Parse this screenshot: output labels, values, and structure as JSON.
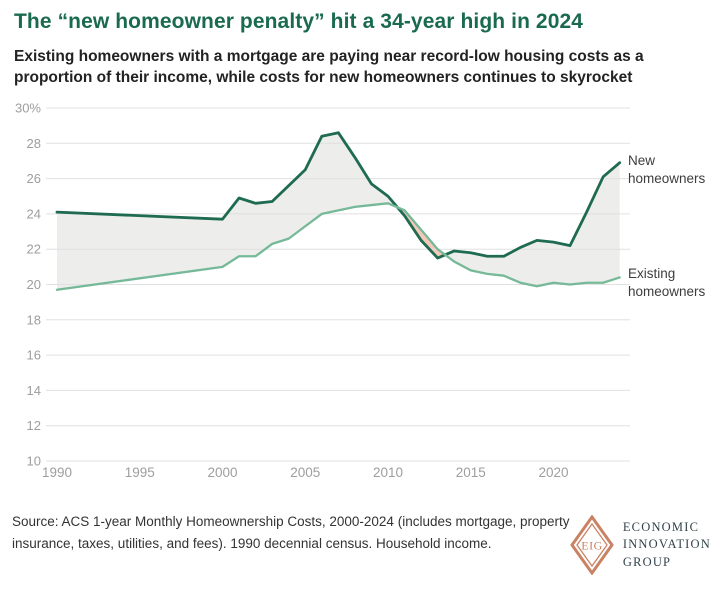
{
  "header": {
    "title": "The “new homeowner penalty” hit a 34-year high in 2024",
    "subtitle": "Existing homeowners with a mortgage are paying near record-low housing costs as a proportion of their income, while costs for new homeowners continues to skyrocket"
  },
  "chart_data": {
    "type": "line",
    "x": [
      1990,
      2000,
      2001,
      2002,
      2003,
      2004,
      2005,
      2006,
      2007,
      2008,
      2009,
      2010,
      2011,
      2012,
      2013,
      2014,
      2015,
      2016,
      2017,
      2018,
      2019,
      2020,
      2021,
      2022,
      2023,
      2024
    ],
    "series": [
      {
        "name": "New homeowners",
        "color": "#1e6b52",
        "stroke_width": 2.8,
        "values": [
          24.1,
          23.7,
          24.9,
          24.6,
          24.7,
          25.6,
          26.5,
          28.4,
          28.6,
          27.2,
          25.7,
          25.0,
          23.9,
          22.5,
          21.5,
          21.9,
          21.8,
          21.6,
          21.6,
          22.1,
          22.5,
          22.4,
          22.2,
          24.1,
          26.1,
          26.9
        ]
      },
      {
        "name": "Existing homeowners",
        "color": "#76b998",
        "stroke_width": 2.3,
        "values": [
          19.7,
          21.0,
          21.6,
          21.6,
          22.3,
          22.6,
          23.3,
          24.0,
          24.2,
          24.4,
          24.5,
          24.6,
          24.2,
          23.1,
          22.0,
          21.3,
          20.8,
          20.6,
          20.5,
          20.1,
          19.9,
          20.1,
          20.0,
          20.1,
          20.1,
          20.4
        ]
      }
    ],
    "yticks": [
      30,
      28,
      26,
      24,
      22,
      20,
      18,
      16,
      14,
      12,
      10
    ],
    "ytick_labels": [
      "30%",
      "28",
      "26",
      "24",
      "22",
      "20",
      "18",
      "16",
      "14",
      "12",
      "10"
    ],
    "xticks": [
      1990,
      1995,
      2000,
      2005,
      2010,
      2015,
      2020
    ],
    "xtick_labels": [
      "1990",
      "1995",
      "2000",
      "2005",
      "2010",
      "2015",
      "2020"
    ],
    "ylim": [
      10,
      30
    ],
    "xlim": [
      1990,
      2024
    ],
    "grid": "horizontal",
    "fill_between": {
      "new_above_existing_color": "#ededec",
      "existing_above_new_color": "#f5c8ba"
    },
    "gridline_color": "#e0e0e0",
    "tick_label_color": "#9e9e9e",
    "end_labels": [
      {
        "text": "New homeowners",
        "series": "New homeowners"
      },
      {
        "text": "Existing homeowners",
        "series": "Existing homeowners"
      }
    ],
    "title": "The “new homeowner penalty” hit a 34-year high in 2024",
    "xlabel": "",
    "ylabel": ""
  },
  "footer": {
    "source": "Source: ACS 1-year Monthly Homeownership Costs, 2000-2024 (includes mortgage, property insurance, taxes, utilities, and fees). 1990 decennial census. Household income.",
    "logo": {
      "monogram": "EIG",
      "wordmark_lines": [
        "ECONOMIC",
        "INNOVATION",
        "GROUP"
      ],
      "accent_color": "#c98263",
      "text_color": "#32424a"
    }
  }
}
